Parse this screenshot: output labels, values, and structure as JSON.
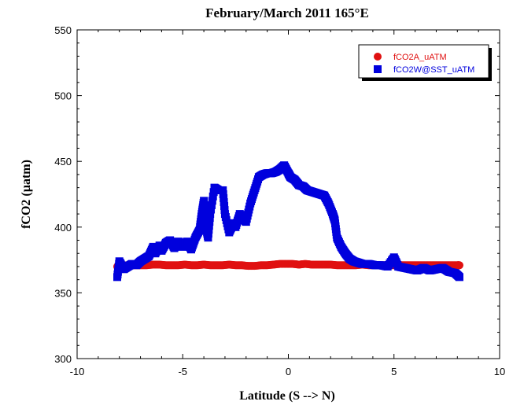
{
  "chart_data": {
    "type": "scatter",
    "title": "February/March 2011 165°E",
    "xlabel": "Latitude (S --> N)",
    "ylabel": "fCO2 (µatm)",
    "xlim": [
      -10,
      10
    ],
    "ylim": [
      300,
      550
    ],
    "xticks": [
      "-10",
      "-5",
      "0",
      "5",
      "10"
    ],
    "yticks": [
      "300",
      "350",
      "400",
      "450",
      "500",
      "550"
    ],
    "grid": false,
    "legend_position": "top-right",
    "series": [
      {
        "name": "fCO2A_uATM",
        "color": "#e01010",
        "marker": "circle",
        "x": [
          -8.1,
          -7.9,
          -7.6,
          -7.3,
          -7.0,
          -6.7,
          -6.4,
          -6.1,
          -5.8,
          -5.5,
          -5.2,
          -4.9,
          -4.6,
          -4.3,
          -4.0,
          -3.7,
          -3.4,
          -3.1,
          -2.8,
          -2.5,
          -2.2,
          -1.9,
          -1.6,
          -1.3,
          -1.0,
          -0.7,
          -0.4,
          -0.1,
          0.2,
          0.5,
          0.8,
          1.1,
          1.4,
          1.7,
          2.0,
          2.3,
          2.6,
          2.9,
          3.2,
          3.5,
          3.8,
          4.1,
          4.4,
          4.7,
          5.0,
          5.3,
          5.6,
          5.9,
          6.2,
          6.5,
          6.8,
          7.1,
          7.4,
          7.7,
          8.0,
          8.1
        ],
        "values": [
          370,
          370.5,
          371,
          371,
          371,
          371,
          371.5,
          371.5,
          371,
          371,
          371,
          371.5,
          371,
          371,
          371.5,
          371,
          371,
          371,
          371.5,
          371,
          371,
          370.5,
          370.5,
          371,
          371,
          371.5,
          372,
          372,
          372,
          371.5,
          372,
          371.5,
          371.5,
          371.5,
          371.5,
          371,
          371,
          371,
          371,
          371.5,
          371,
          371,
          371,
          371,
          371,
          371,
          371,
          371,
          371,
          371,
          371,
          371,
          371,
          371,
          371,
          371
        ]
      },
      {
        "name": "fCO2W@SST_uATM",
        "color": "#0000dd",
        "marker": "square",
        "x": [
          -8.1,
          -8.0,
          -7.8,
          -7.6,
          -7.4,
          -7.2,
          -7.0,
          -6.8,
          -6.6,
          -6.4,
          -6.3,
          -6.1,
          -6.0,
          -5.8,
          -5.6,
          -5.4,
          -5.2,
          -5.0,
          -4.8,
          -4.6,
          -4.4,
          -4.2,
          -4.1,
          -4.0,
          -3.9,
          -3.8,
          -3.7,
          -3.5,
          -3.3,
          -3.1,
          -3.0,
          -2.8,
          -2.6,
          -2.5,
          -2.3,
          -2.1,
          -2.0,
          -1.8,
          -1.6,
          -1.4,
          -1.2,
          -1.0,
          -0.8,
          -0.6,
          -0.4,
          -0.2,
          0.0,
          0.1,
          0.3,
          0.5,
          0.7,
          0.9,
          1.1,
          1.3,
          1.5,
          1.7,
          1.9,
          2.1,
          2.2,
          2.3,
          2.5,
          2.7,
          2.9,
          3.1,
          3.3,
          3.5,
          3.8,
          4.1,
          4.4,
          4.7,
          5.0,
          5.2,
          5.5,
          5.8,
          6.1,
          6.4,
          6.7,
          7.0,
          7.3,
          7.6,
          7.9,
          8.1
        ],
        "values": [
          362,
          374,
          368,
          370,
          372,
          371,
          374,
          376,
          378,
          385,
          380,
          386,
          382,
          388,
          390,
          384,
          389,
          385,
          389,
          383,
          392,
          398,
          410,
          420,
          400,
          392,
          410,
          430,
          428,
          428,
          410,
          396,
          403,
          400,
          410,
          406,
          404,
          418,
          428,
          438,
          440,
          441,
          441,
          442,
          444,
          447,
          441,
          438,
          436,
          432,
          431,
          428,
          427,
          426,
          425,
          424,
          418,
          410,
          405,
          392,
          385,
          380,
          376,
          374,
          373,
          372,
          372,
          371,
          371,
          370,
          377,
          370,
          369,
          368,
          367,
          369,
          367,
          368,
          369,
          366,
          365,
          362
        ]
      }
    ]
  }
}
